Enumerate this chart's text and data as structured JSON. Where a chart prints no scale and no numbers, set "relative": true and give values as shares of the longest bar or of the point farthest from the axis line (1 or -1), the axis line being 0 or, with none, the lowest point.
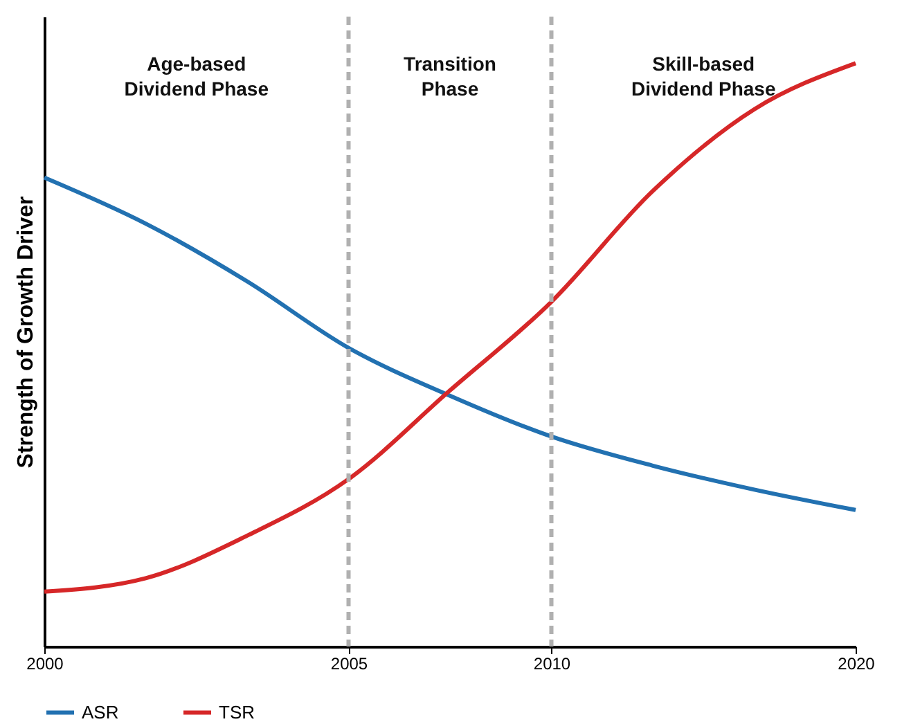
{
  "chart_data": {
    "type": "line",
    "ylabel": "Strength of Growth Driver",
    "relative": true,
    "categories": [
      "2000",
      null,
      null,
      "2005",
      null,
      "2010",
      null,
      null,
      "2020"
    ],
    "series": [
      {
        "name": "ASR",
        "color": "#2271b1",
        "values": [
          0.804,
          0.725,
          0.626,
          0.512,
          0.43,
          0.36,
          0.31,
          0.269,
          0.234
        ]
      },
      {
        "name": "TSR",
        "color": "#d62728",
        "values": [
          0.094,
          0.117,
          0.19,
          0.287,
          0.439,
          0.591,
          0.781,
          0.921,
          1
        ]
      }
    ],
    "ref_lines": [
      {
        "axis": "x",
        "value": "2005",
        "color": "#b0b0b0",
        "line_style": "dashed"
      },
      {
        "axis": "x",
        "value": "2010",
        "color": "#b0b0b0",
        "line_style": "dashed"
      }
    ],
    "annotations": [
      "Age-based\nDividend Phase",
      "Transition\nPhase",
      "Skill-based\nDividend Phase"
    ],
    "legend": "bottom",
    "grid": false,
    "line_style": "solid",
    "marker": "none"
  }
}
